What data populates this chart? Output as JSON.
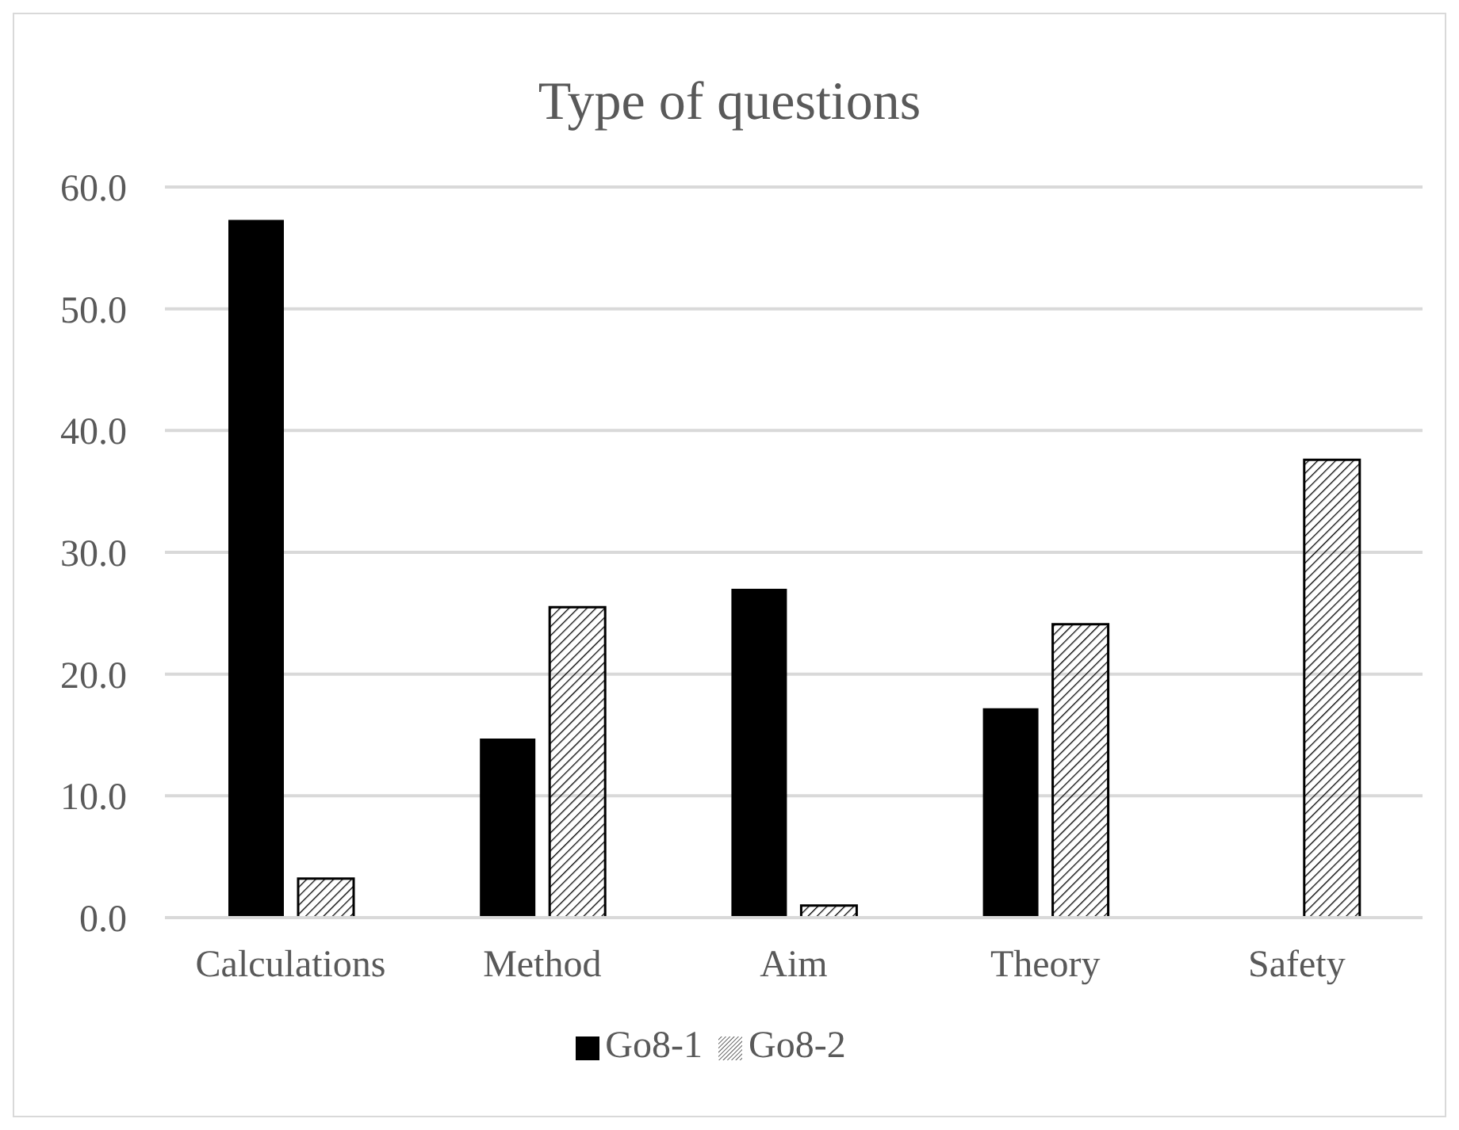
{
  "chart_data": {
    "type": "bar",
    "title": "Type of questions",
    "categories": [
      "Calculations",
      "Method",
      "Aim",
      "Theory",
      "Safety"
    ],
    "series": [
      {
        "name": "Go8-1",
        "color": "#000000",
        "values": [
          57.3,
          14.7,
          27.0,
          17.2,
          0
        ]
      },
      {
        "name": "Go8-2",
        "color": "#000000",
        "values": [
          3.2,
          25.5,
          1.0,
          24.1,
          37.6
        ]
      }
    ],
    "ylim": [
      0,
      60
    ],
    "yticks": [
      {
        "value": 0,
        "label": "0.0"
      },
      {
        "value": 10,
        "label": "10.0"
      },
      {
        "value": 20,
        "label": "20.0"
      },
      {
        "value": 30,
        "label": "30.0"
      },
      {
        "value": 40,
        "label": "40.0"
      },
      {
        "value": 50,
        "label": "50.0"
      },
      {
        "value": 60,
        "label": "60.0"
      }
    ],
    "grid": "y",
    "legend": "bottom"
  }
}
